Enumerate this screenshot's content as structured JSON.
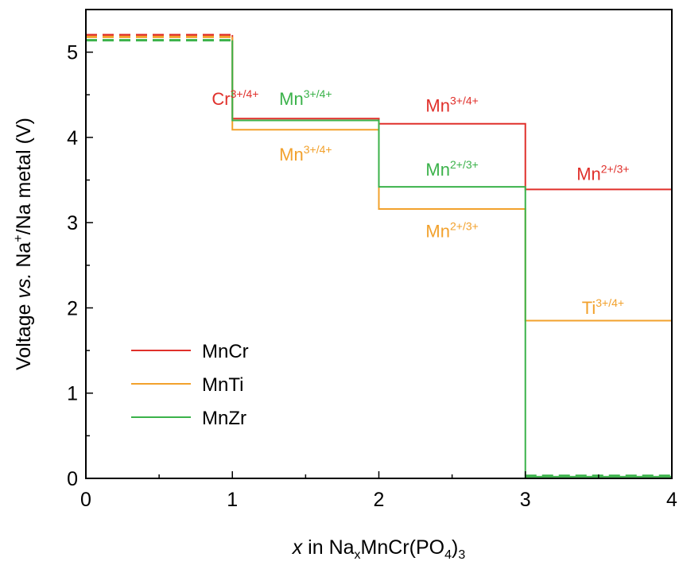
{
  "chart_data": {
    "type": "line",
    "xlabel": {
      "italic": "x",
      "text": " in Na",
      "sub1": "x",
      "mid": "MnCr(PO",
      "sub2": "4",
      "end": ")",
      "sub3": "3"
    },
    "ylabel": {
      "pre": "Voltage ",
      "italic": "vs.",
      "mid": " Na",
      "sup": "+",
      "post": "/Na metal (V)"
    },
    "xlim": [
      0,
      4
    ],
    "ylim": [
      0,
      5.5
    ],
    "x_ticks": [
      0,
      1,
      2,
      3,
      4
    ],
    "y_ticks": [
      0,
      1,
      2,
      3,
      4,
      5
    ],
    "x_tick_labels": [
      "0",
      "1",
      "2",
      "3",
      "4"
    ],
    "y_tick_labels": [
      "0",
      "1",
      "2",
      "3",
      "4",
      "5"
    ],
    "colors": {
      "MnCr": "#e0302b",
      "MnTi": "#f2a12c",
      "MnZr": "#3bb24a"
    },
    "series": [
      {
        "name": "MnCr",
        "color": "#e0302b",
        "x": [
          1,
          1,
          2,
          2,
          3,
          3,
          4
        ],
        "y": [
          5.2,
          4.22,
          4.22,
          4.16,
          4.16,
          3.39,
          3.39
        ]
      },
      {
        "name": "MnTi",
        "color": "#f2a12c",
        "x": [
          1,
          1,
          2,
          2,
          3,
          3,
          4
        ],
        "y": [
          5.18,
          4.09,
          4.09,
          3.16,
          3.16,
          1.85,
          1.85
        ]
      },
      {
        "name": "MnZr",
        "color": "#3bb24a",
        "x": [
          1,
          1,
          2,
          2,
          3,
          3,
          4
        ],
        "y": [
          5.14,
          4.2,
          4.2,
          3.42,
          3.42,
          0.02,
          0.02
        ]
      }
    ],
    "dashed_segments": [
      {
        "series": "MnCr",
        "x": [
          0,
          1
        ],
        "y": [
          5.2,
          5.2
        ]
      },
      {
        "series": "MnTi",
        "x": [
          0,
          1
        ],
        "y": [
          5.18,
          5.18
        ]
      },
      {
        "series": "MnZr",
        "x": [
          0,
          1
        ],
        "y": [
          5.14,
          5.14
        ]
      },
      {
        "series": "MnZr",
        "x": [
          3,
          4
        ],
        "y": [
          0.03,
          0.03
        ]
      }
    ],
    "annotations": [
      {
        "base": "Cr",
        "sup": "3+/4+",
        "color": "#e0302b",
        "x": 1.02,
        "y": 4.38
      },
      {
        "base": "Mn",
        "sup": "3+/4+",
        "color": "#3bb24a",
        "x": 1.5,
        "y": 4.38
      },
      {
        "base": "Mn",
        "sup": "3+/4+",
        "color": "#e0302b",
        "x": 2.5,
        "y": 4.3
      },
      {
        "base": "Mn",
        "sup": "3+/4+",
        "color": "#f2a12c",
        "x": 1.5,
        "y": 3.73
      },
      {
        "base": "Mn",
        "sup": "2+/3+",
        "color": "#3bb24a",
        "x": 2.5,
        "y": 3.55
      },
      {
        "base": "Mn",
        "sup": "2+/3+",
        "color": "#e0302b",
        "x": 3.53,
        "y": 3.5
      },
      {
        "base": "Mn",
        "sup": "2+/3+",
        "color": "#f2a12c",
        "x": 2.5,
        "y": 2.83
      },
      {
        "base": "Ti",
        "sup": "3+/4+",
        "color": "#f2a12c",
        "x": 3.53,
        "y": 1.93
      }
    ],
    "legend": {
      "position": "lower-left",
      "entries": [
        {
          "label": "MnCr",
          "color": "#e0302b"
        },
        {
          "label": "MnTi",
          "color": "#f2a12c"
        },
        {
          "label": "MnZr",
          "color": "#3bb24a"
        }
      ]
    }
  }
}
